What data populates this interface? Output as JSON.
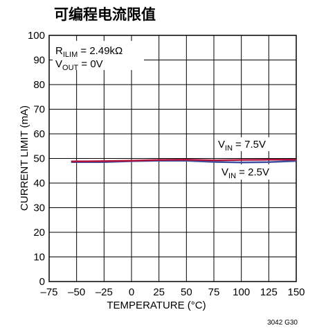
{
  "chart_data": {
    "type": "line",
    "title": "可编程电流限值",
    "xlabel": "TEMPERATURE (°C)",
    "ylabel": "CURRENT LIMIT (mA)",
    "xlim": [
      -75,
      150
    ],
    "ylim": [
      0,
      100
    ],
    "xticks": [
      -75,
      -50,
      -25,
      0,
      25,
      50,
      75,
      100,
      125,
      150
    ],
    "yticks": [
      0,
      10,
      20,
      30,
      40,
      50,
      60,
      70,
      80,
      90,
      100
    ],
    "xtick_labels": [
      "–75",
      "–50",
      "–25",
      "0",
      "25",
      "50",
      "75",
      "100",
      "125",
      "150"
    ],
    "grid": true,
    "series": [
      {
        "name": "VIN = 7.5V",
        "color": "#b0123a",
        "x": [
          -55,
          -25,
          0,
          25,
          50,
          75,
          100,
          125,
          150
        ],
        "y": [
          48.8,
          48.9,
          49.1,
          49.4,
          49.5,
          49.2,
          49.4,
          49.5,
          49.5
        ]
      },
      {
        "name": "VIN = 2.5V",
        "color": "#3d4fa0",
        "x": [
          -55,
          -25,
          0,
          25,
          50,
          75,
          100,
          125,
          150
        ],
        "y": [
          48.5,
          48.5,
          48.9,
          49.1,
          49.1,
          48.6,
          48.4,
          48.5,
          49.0
        ]
      }
    ],
    "annotations": {
      "rilim": {
        "main": "R",
        "sub": "ILIM",
        "rest": " = 2.49kΩ"
      },
      "vout": {
        "main": "V",
        "sub": "OUT",
        "rest": " = 0V"
      },
      "vin_high": {
        "main": "V",
        "sub": "IN",
        "rest": " = 7.5V"
      },
      "vin_low": {
        "main": "V",
        "sub": "IN",
        "rest": " = 2.5V"
      }
    },
    "figure_id": "3042 G30"
  }
}
